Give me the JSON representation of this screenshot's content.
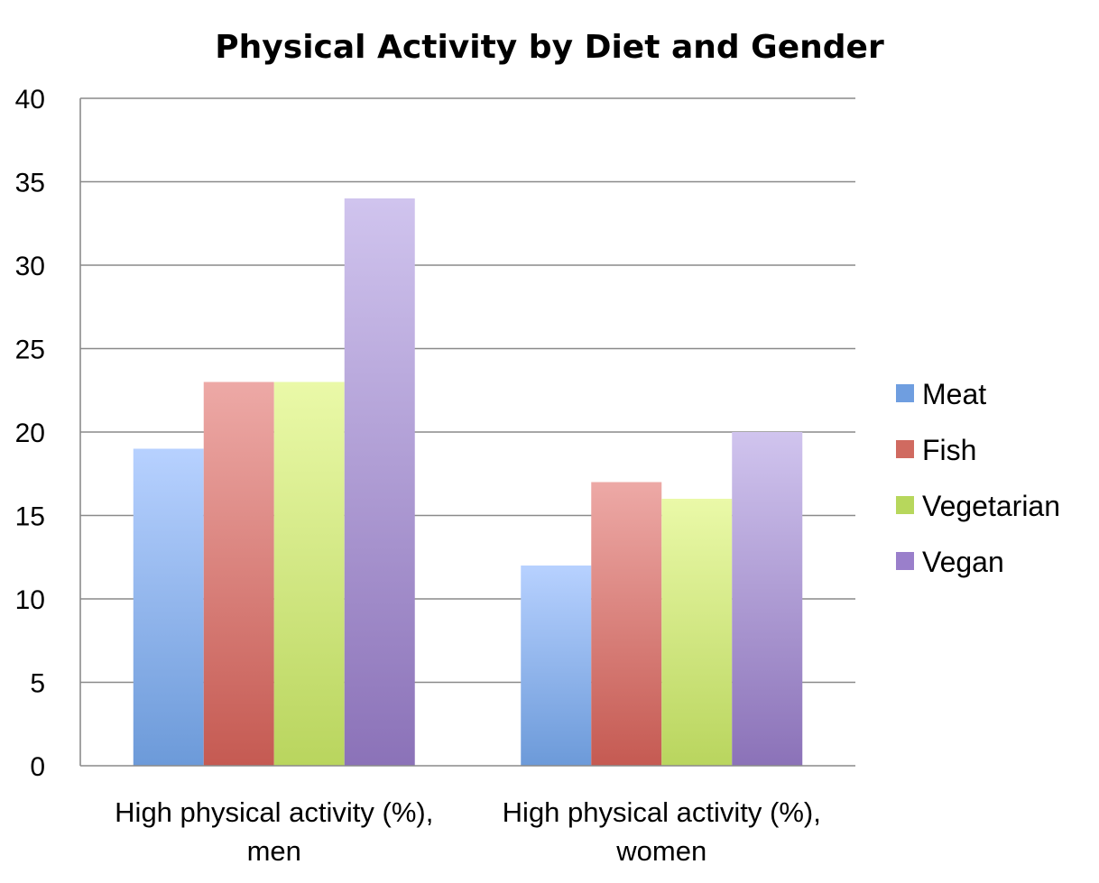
{
  "chart_data": {
    "type": "bar",
    "title": "Physical Activity by Diet and Gender",
    "xlabel": "",
    "ylabel": "",
    "ylim": [
      0,
      40
    ],
    "yticks": [
      "0",
      "5",
      "10",
      "15",
      "20",
      "25",
      "30",
      "35",
      "40"
    ],
    "grid": true,
    "legend_position": "right",
    "categories": [
      [
        "High physical activity (%),",
        "men"
      ],
      [
        "High physical activity (%),",
        "women"
      ]
    ],
    "series": [
      {
        "name": "Meat",
        "values": [
          19,
          12
        ],
        "color_top": "#b7d1ff",
        "color_bottom": "#6c9ad9",
        "legend_color": "#6f9ee0"
      },
      {
        "name": "Fish",
        "values": [
          23,
          17
        ],
        "color_top": "#eda9a6",
        "color_bottom": "#c55a52",
        "legend_color": "#d06a60"
      },
      {
        "name": "Vegetarian",
        "values": [
          23,
          16
        ],
        "color_top": "#eaf9a8",
        "color_bottom": "#b9d55e",
        "legend_color": "#b7d75c"
      },
      {
        "name": "Vegan",
        "values": [
          34,
          20
        ],
        "color_top": "#d0c4ee",
        "color_bottom": "#8b72b8",
        "legend_color": "#9a7fcb"
      }
    ]
  }
}
